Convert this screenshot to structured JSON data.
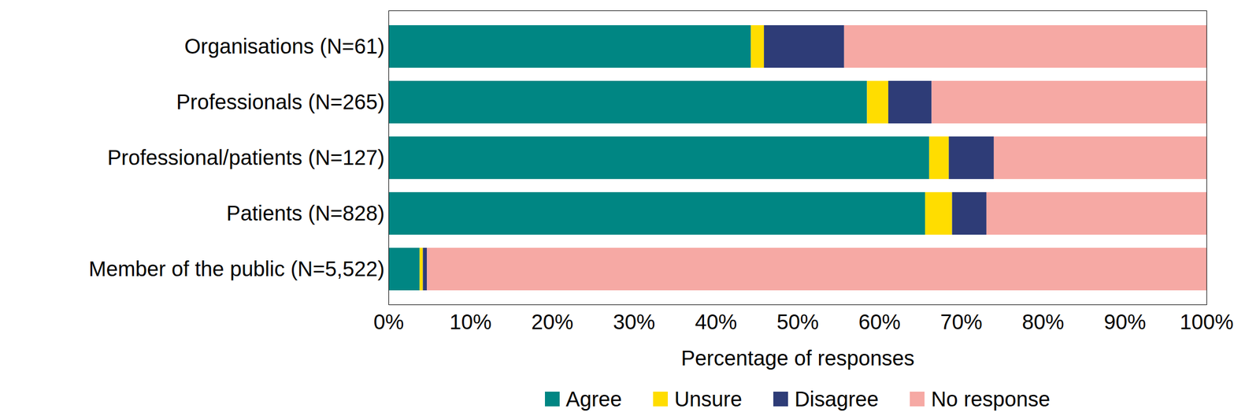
{
  "chart_data": {
    "type": "bar",
    "orientation": "horizontal",
    "stacked": true,
    "categories": [
      "Organisations (N=61)",
      "Professionals (N=265)",
      "Professional/patients (N=127)",
      "Patients (N=828)",
      "Member of the public (N=5,522)"
    ],
    "series": [
      {
        "name": "Agree",
        "color": "#008683",
        "values": [
          44.3,
          58.5,
          66.1,
          65.6,
          3.8
        ]
      },
      {
        "name": "Unsure",
        "color": "#ffdd00",
        "values": [
          1.6,
          2.6,
          2.4,
          3.3,
          0.4
        ]
      },
      {
        "name": "Disagree",
        "color": "#2e3c77",
        "values": [
          9.8,
          5.3,
          5.5,
          4.2,
          0.5
        ]
      },
      {
        "name": "No response",
        "color": "#f6a9a4",
        "values": [
          44.3,
          33.6,
          26.0,
          26.9,
          95.3
        ]
      }
    ],
    "x_label": "Percentage of responses",
    "xlim": [
      0,
      100
    ],
    "xticks": [
      {
        "value": 0,
        "label": "0%"
      },
      {
        "value": 10,
        "label": "10%"
      },
      {
        "value": 20,
        "label": "20%"
      },
      {
        "value": 30,
        "label": "30%"
      },
      {
        "value": 40,
        "label": "40%"
      },
      {
        "value": 50,
        "label": "50%"
      },
      {
        "value": 60,
        "label": "60%"
      },
      {
        "value": 70,
        "label": "70%"
      },
      {
        "value": 80,
        "label": "80%"
      },
      {
        "value": 90,
        "label": "90%"
      },
      {
        "value": 100,
        "label": "100%"
      }
    ],
    "grid": false,
    "legend": "bottom"
  }
}
